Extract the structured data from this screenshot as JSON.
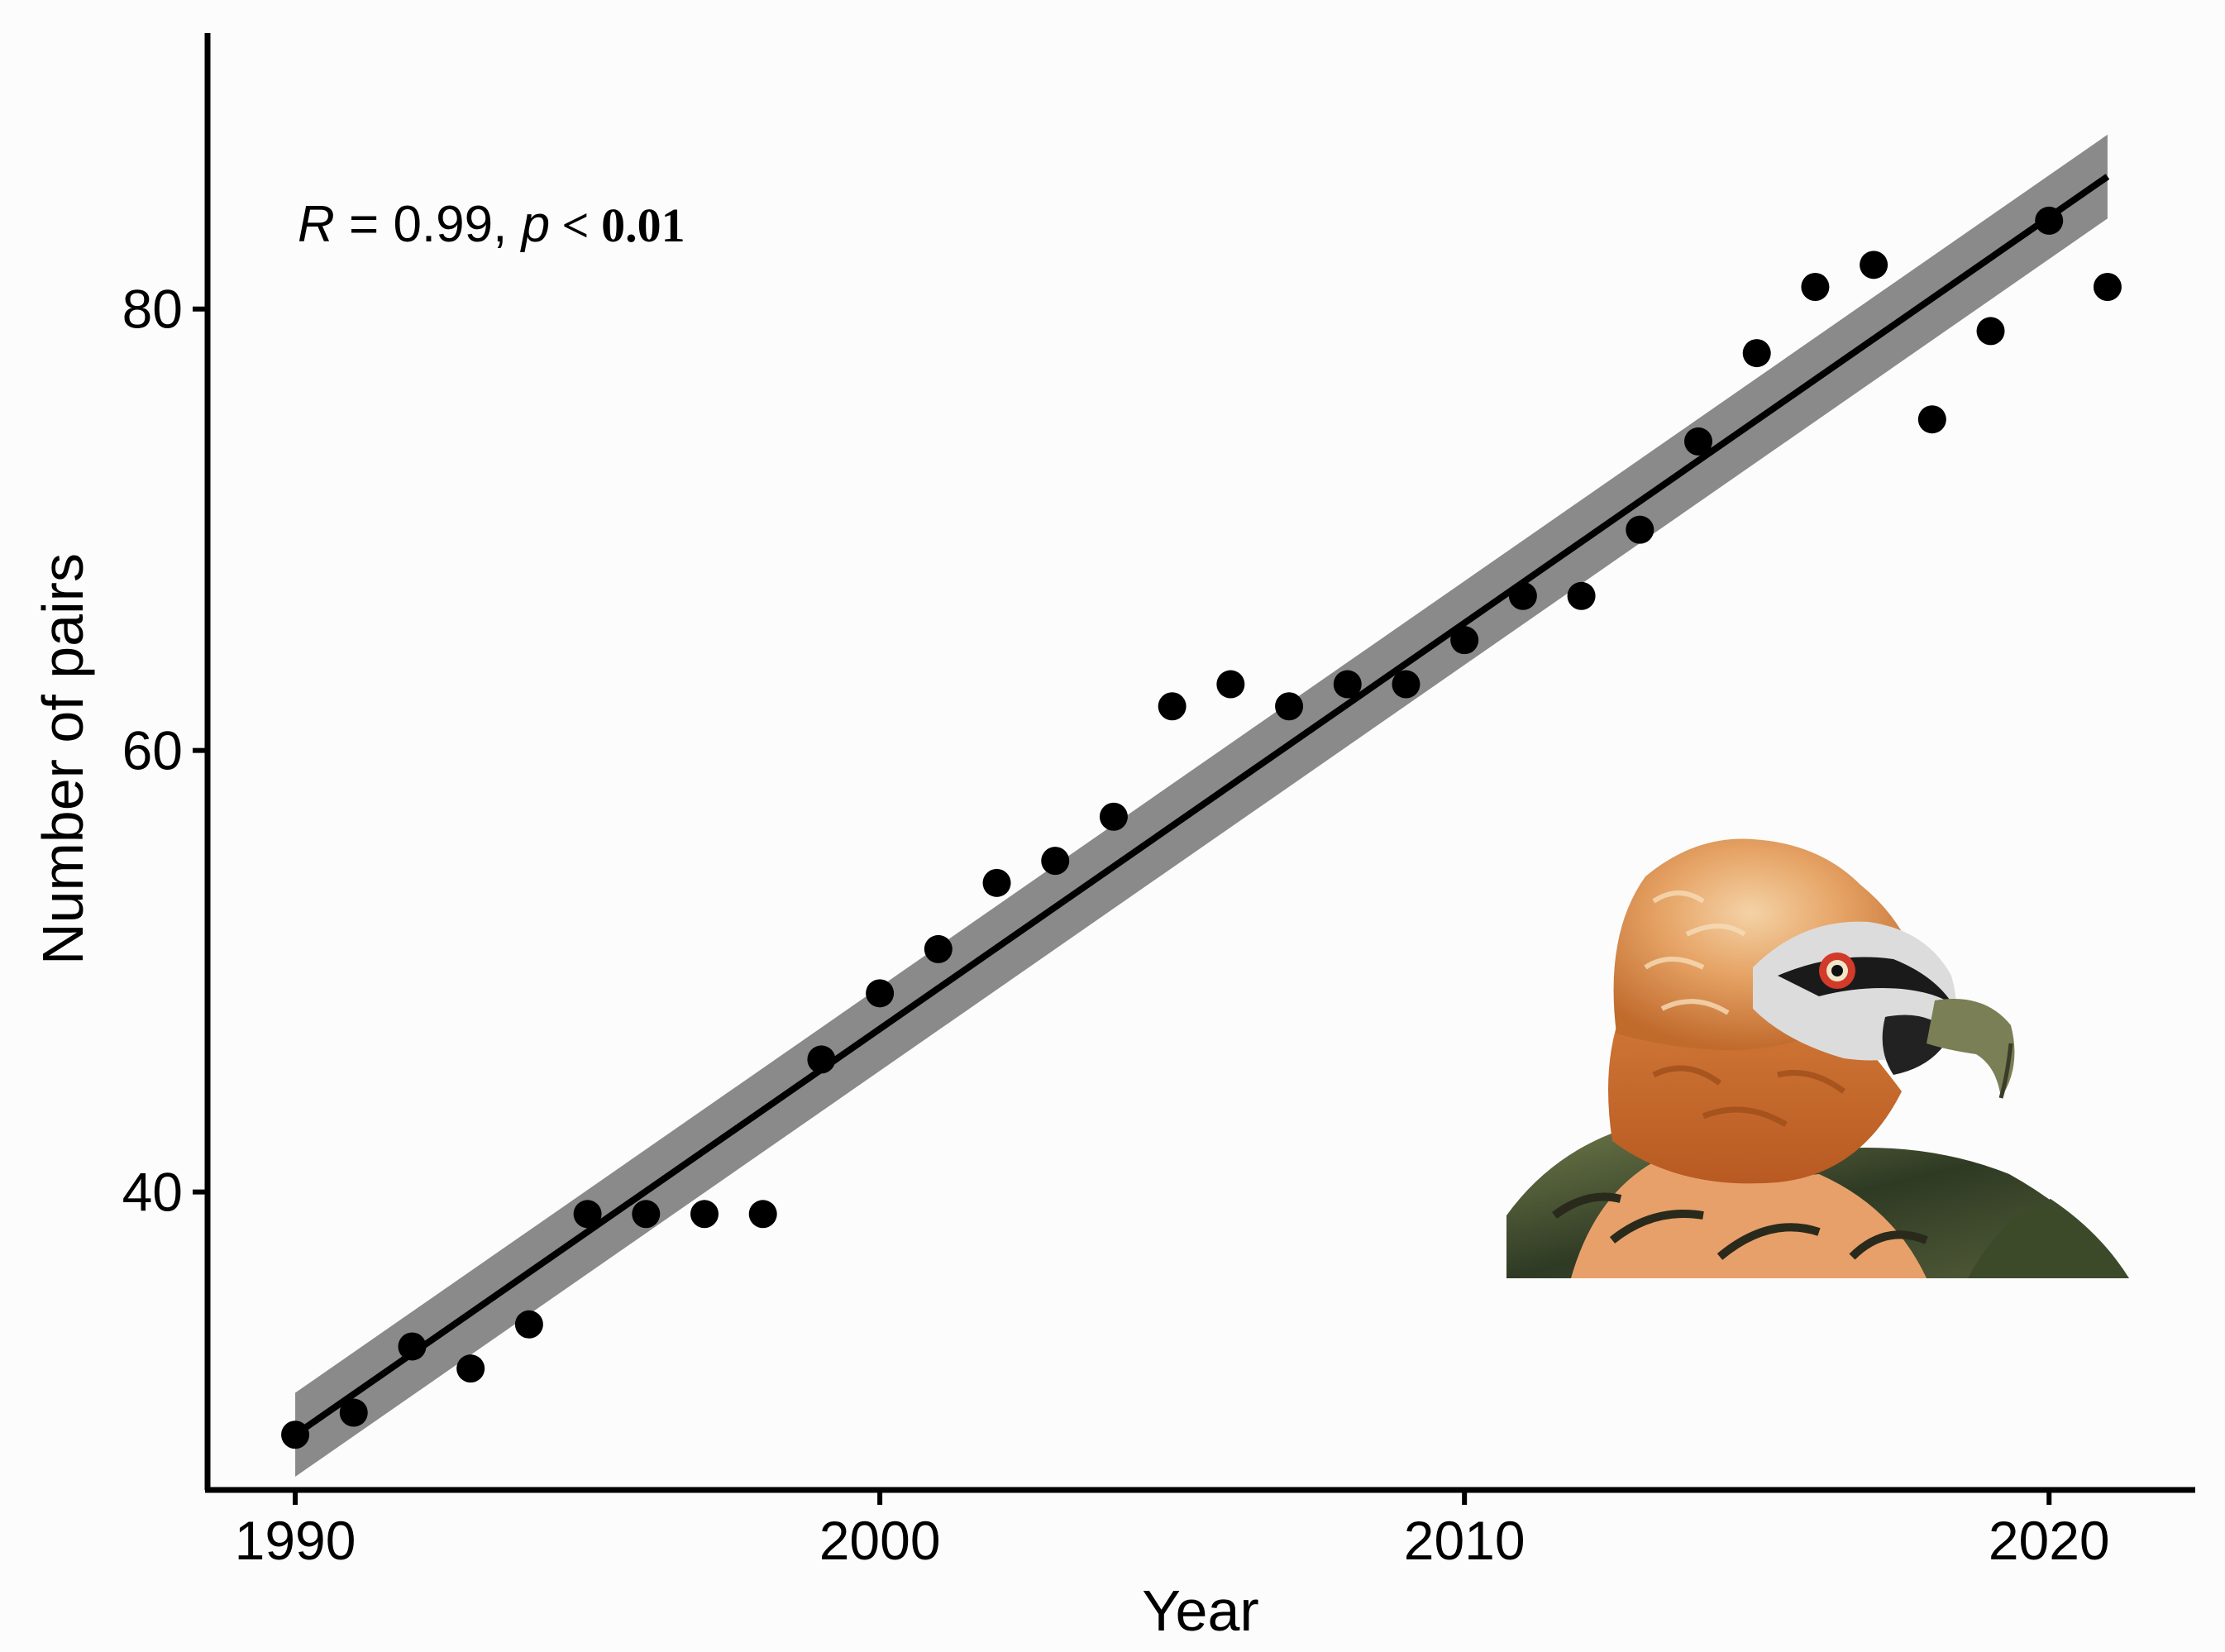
{
  "chart_data": {
    "type": "scatter",
    "xlabel": "Year",
    "ylabel": "Number of pairs",
    "xlim": [
      1988.5,
      2022.5
    ],
    "ylim": [
      26.5,
      92.5
    ],
    "xticks": [
      1990,
      2000,
      2010,
      2020
    ],
    "yticks": [
      40,
      60,
      80
    ],
    "x_tick_labels": [
      "1990",
      "2000",
      "2010",
      "2020"
    ],
    "y_tick_labels": [
      "40",
      "60",
      "80"
    ],
    "points": [
      {
        "x": 1990,
        "y": 29
      },
      {
        "x": 1991,
        "y": 30
      },
      {
        "x": 1992,
        "y": 33
      },
      {
        "x": 1993,
        "y": 32
      },
      {
        "x": 1994,
        "y": 34
      },
      {
        "x": 1995,
        "y": 39
      },
      {
        "x": 1996,
        "y": 39
      },
      {
        "x": 1997,
        "y": 39
      },
      {
        "x": 1998,
        "y": 39
      },
      {
        "x": 1999,
        "y": 46
      },
      {
        "x": 2000,
        "y": 49
      },
      {
        "x": 2001,
        "y": 51
      },
      {
        "x": 2002,
        "y": 54
      },
      {
        "x": 2003,
        "y": 55
      },
      {
        "x": 2004,
        "y": 57
      },
      {
        "x": 2005,
        "y": 62
      },
      {
        "x": 2006,
        "y": 63
      },
      {
        "x": 2007,
        "y": 62
      },
      {
        "x": 2008,
        "y": 63
      },
      {
        "x": 2009,
        "y": 63
      },
      {
        "x": 2010,
        "y": 65
      },
      {
        "x": 2011,
        "y": 67
      },
      {
        "x": 2012,
        "y": 67
      },
      {
        "x": 2013,
        "y": 70
      },
      {
        "x": 2014,
        "y": 74
      },
      {
        "x": 2015,
        "y": 78
      },
      {
        "x": 2016,
        "y": 81
      },
      {
        "x": 2017,
        "y": 82
      },
      {
        "x": 2018,
        "y": 75
      },
      {
        "x": 2019,
        "y": 79
      },
      {
        "x": 2020,
        "y": 84
      },
      {
        "x": 2021,
        "y": 81
      }
    ],
    "regression": {
      "x": [
        1990,
        2021
      ],
      "y": [
        29,
        86
      ],
      "ci_halfwidth": [
        1.9,
        1.9
      ]
    },
    "annotation": {
      "r_symbol": "R",
      "r_text": " = 0.99, ",
      "p_symbol": "p",
      "p_text": " < 0.01"
    },
    "grid": false,
    "legend": "none",
    "colors": {
      "points": "#000000",
      "line": "#000000",
      "ribbon": "#8a8a8a",
      "background": "#fcfcfc"
    }
  },
  "illustration": {
    "icon": "bearded-vulture-photo"
  }
}
